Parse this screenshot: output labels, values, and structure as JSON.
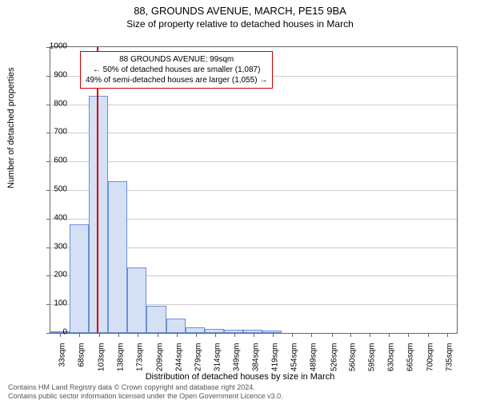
{
  "title": "88, GROUNDS AVENUE, MARCH, PE15 9BA",
  "subtitle": "Size of property relative to detached houses in March",
  "ylabel": "Number of detached properties",
  "xlabel": "Distribution of detached houses by size in March",
  "annotation": {
    "line1": "88 GROUNDS AVENUE: 99sqm",
    "line2": "← 50% of detached houses are smaller (1,087)",
    "line3": "49% of semi-detached houses are larger (1,055) →"
  },
  "footnote": {
    "line1": "Contains HM Land Registry data © Crown copyright and database right 2024.",
    "line2": "Contains public sector information licensed under the Open Government Licence v3.0."
  },
  "chart": {
    "type": "histogram",
    "ylim": [
      0,
      1000
    ],
    "ytick_step": 100,
    "background_color": "#ffffff",
    "grid_color": "#cccccc",
    "bar_fill": "#d6e0f5",
    "bar_stroke": "#6a8fd8",
    "marker_color": "#cc0000",
    "marker_x_value": 99,
    "x_range": [
      15,
      753
    ],
    "x_ticks": [
      33,
      68,
      103,
      138,
      173,
      209,
      244,
      279,
      314,
      349,
      384,
      419,
      454,
      489,
      526,
      560,
      595,
      630,
      665,
      700,
      735
    ],
    "bars": [
      {
        "x_start": 15,
        "x_end": 50,
        "value": 5
      },
      {
        "x_start": 50,
        "x_end": 85,
        "value": 380
      },
      {
        "x_start": 85,
        "x_end": 120,
        "value": 830
      },
      {
        "x_start": 120,
        "x_end": 155,
        "value": 530
      },
      {
        "x_start": 155,
        "x_end": 190,
        "value": 230
      },
      {
        "x_start": 190,
        "x_end": 225,
        "value": 95
      },
      {
        "x_start": 225,
        "x_end": 260,
        "value": 50
      },
      {
        "x_start": 260,
        "x_end": 295,
        "value": 20
      },
      {
        "x_start": 295,
        "x_end": 330,
        "value": 15
      },
      {
        "x_start": 330,
        "x_end": 365,
        "value": 10
      },
      {
        "x_start": 365,
        "x_end": 400,
        "value": 10
      },
      {
        "x_start": 400,
        "x_end": 435,
        "value": 8
      },
      {
        "x_start": 435,
        "x_end": 470,
        "value": 0
      },
      {
        "x_start": 470,
        "x_end": 505,
        "value": 0
      },
      {
        "x_start": 505,
        "x_end": 540,
        "value": 0
      },
      {
        "x_start": 540,
        "x_end": 575,
        "value": 0
      },
      {
        "x_start": 575,
        "x_end": 610,
        "value": 0
      },
      {
        "x_start": 610,
        "x_end": 645,
        "value": 0
      },
      {
        "x_start": 645,
        "x_end": 680,
        "value": 0
      },
      {
        "x_start": 680,
        "x_end": 715,
        "value": 0
      },
      {
        "x_start": 715,
        "x_end": 753,
        "value": 0
      }
    ]
  }
}
